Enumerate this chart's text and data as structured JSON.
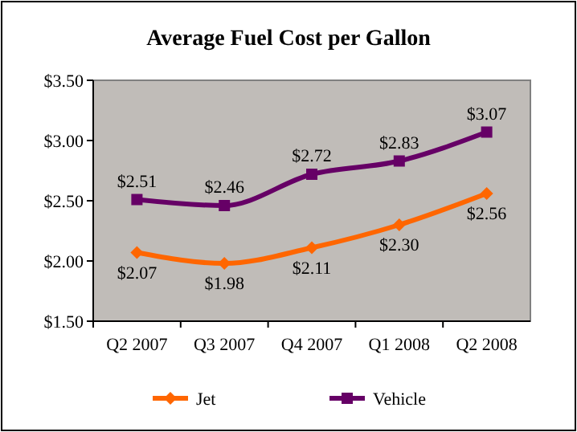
{
  "chart_data": {
    "type": "line",
    "title": "Average Fuel Cost per Gallon",
    "categories": [
      "Q2 2007",
      "Q3 2007",
      "Q4 2007",
      "Q1 2008",
      "Q2 2008"
    ],
    "series": [
      {
        "name": "Jet",
        "color": "#ff6600",
        "marker": "diamond",
        "values": [
          2.07,
          1.98,
          2.11,
          2.3,
          2.56
        ],
        "value_labels": [
          "$2.07",
          "$1.98",
          "$2.11",
          "$2.30",
          "$2.56"
        ]
      },
      {
        "name": "Vehicle",
        "color": "#660066",
        "marker": "square",
        "values": [
          2.51,
          2.46,
          2.72,
          2.83,
          3.07
        ],
        "value_labels": [
          "$2.51",
          "$2.46",
          "$2.72",
          "$2.83",
          "$3.07"
        ]
      }
    ],
    "ylim": [
      1.5,
      3.5
    ],
    "yticks": [
      {
        "value": 1.5,
        "label": "$1.50"
      },
      {
        "value": 2,
        "label": "$2.00"
      },
      {
        "value": 2.5,
        "label": "$2.50"
      },
      {
        "value": 3,
        "label": "$3.00"
      },
      {
        "value": 3.5,
        "label": "$3.50"
      }
    ],
    "grid": false,
    "legend": "bottom"
  }
}
